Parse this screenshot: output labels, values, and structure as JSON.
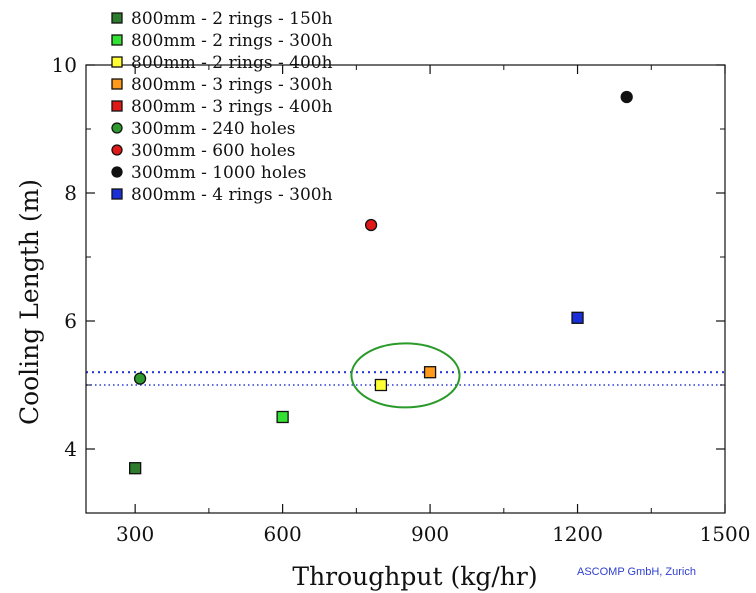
{
  "chart_data": {
    "type": "scatter",
    "title": "",
    "xlabel": "Throughput (kg/hr)",
    "ylabel": "Cooling Length (m)",
    "xlim": [
      200,
      1500
    ],
    "ylim": [
      3,
      10
    ],
    "xticks": [
      300,
      600,
      900,
      1200,
      1500
    ],
    "yticks": [
      4,
      6,
      8,
      10
    ],
    "grid": false,
    "legend_position": "top-left",
    "credit": "ASCOMP GmbH, Zurich",
    "series": [
      {
        "name": "800mm - 2 rings - 150h",
        "marker": "square",
        "color": "#2e7d2e",
        "points": [
          {
            "x": 300,
            "y": 3.7
          }
        ]
      },
      {
        "name": "800mm - 2 rings - 300h",
        "marker": "square",
        "color": "#33e033",
        "points": [
          {
            "x": 600,
            "y": 4.5
          }
        ]
      },
      {
        "name": "800mm - 2 rings - 400h",
        "marker": "square",
        "color": "#ffff33",
        "points": [
          {
            "x": 800,
            "y": 5.0
          }
        ]
      },
      {
        "name": "800mm - 3 rings - 300h",
        "marker": "square",
        "color": "#ff9a1a",
        "points": [
          {
            "x": 900,
            "y": 5.2
          }
        ]
      },
      {
        "name": "800mm - 3 rings - 400h",
        "marker": "square",
        "color": "#e01818",
        "points": []
      },
      {
        "name": "300mm - 240 holes",
        "marker": "circle",
        "color": "#2e9a2e",
        "points": [
          {
            "x": 310,
            "y": 5.1
          }
        ]
      },
      {
        "name": "300mm - 600 holes",
        "marker": "circle",
        "color": "#e01818",
        "points": [
          {
            "x": 780,
            "y": 7.5
          }
        ]
      },
      {
        "name": "300mm - 1000 holes",
        "marker": "circle",
        "color": "#111111",
        "points": [
          {
            "x": 1300,
            "y": 9.5
          }
        ]
      },
      {
        "name": "800mm - 4 rings - 300h",
        "marker": "square",
        "color": "#1a2fd8",
        "points": [
          {
            "x": 1200,
            "y": 6.05
          }
        ]
      }
    ],
    "reference_lines": [
      {
        "y": 5.2,
        "color": "#2a3ad8",
        "style": "dotted"
      },
      {
        "y": 5.0,
        "color": "#2a3ad8",
        "style": "dotted"
      }
    ],
    "annotation_ellipse": {
      "cx": 850,
      "cy": 5.15,
      "rx": 110,
      "ry": 0.5,
      "color": "#2a9a2a"
    }
  }
}
